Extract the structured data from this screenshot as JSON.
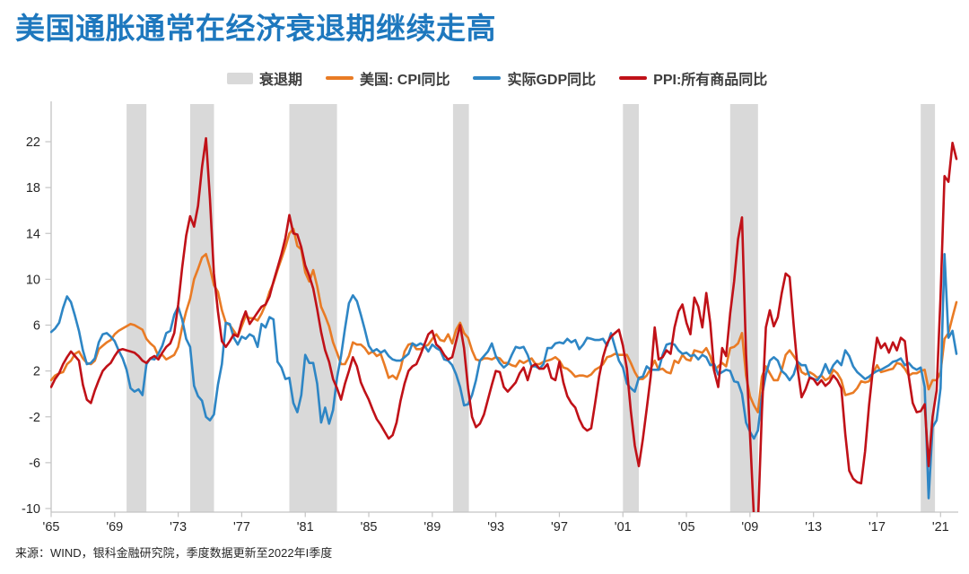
{
  "title": {
    "text": "美国通胀通常在经济衰退期继续走高",
    "color": "#1E78BE"
  },
  "source": {
    "text": "来源：WIND，银科金融研究院，季度数据更新至2022年I季度"
  },
  "colors": {
    "title_blue": "#1E78BE",
    "cpi_orange": "#E97B25",
    "gdp_blue": "#2E86C5",
    "ppi_red": "#C01118",
    "recession_gray": "#D9D9D9",
    "axis_gray": "#C4C4C4",
    "tick_text": "#262626"
  },
  "legend": {
    "items": [
      {
        "label": "衰退期",
        "swatch": "box",
        "color": "#D9D9D9"
      },
      {
        "label": "美国: CPI同比",
        "swatch": "line",
        "color": "#E97B25"
      },
      {
        "label": "实际GDP同比",
        "swatch": "line",
        "color": "#2E86C5"
      },
      {
        "label": "PPI:所有商品同比",
        "swatch": "line",
        "color": "#C01118"
      }
    ]
  },
  "chart_data": {
    "type": "line",
    "title": "美国通胀通常在经济衰退期继续走高",
    "xlabel": "",
    "ylabel": "",
    "unit": "% YoY, quarterly",
    "grid": false,
    "legend_position": "top",
    "xlim": [
      1965.0,
      2022.0
    ],
    "ylim": [
      -10,
      25.6
    ],
    "x_start": 1965.0,
    "x_step": 0.25,
    "x_ticks": [
      {
        "year": 1965,
        "label": "'65"
      },
      {
        "year": 1969,
        "label": "'69"
      },
      {
        "year": 1973,
        "label": "'73"
      },
      {
        "year": 1977,
        "label": "'77"
      },
      {
        "year": 1981,
        "label": "'81"
      },
      {
        "year": 1985,
        "label": "'85"
      },
      {
        "year": 1989,
        "label": "'89"
      },
      {
        "year": 1993,
        "label": "'93"
      },
      {
        "year": 1997,
        "label": "'97"
      },
      {
        "year": 2001,
        "label": "'01"
      },
      {
        "year": 2005,
        "label": "'05"
      },
      {
        "year": 2009,
        "label": "'09"
      },
      {
        "year": 2013,
        "label": "'13"
      },
      {
        "year": 2017,
        "label": "'17"
      },
      {
        "year": 2021,
        "label": "'21"
      }
    ],
    "y_ticks": [
      {
        "value": -10,
        "label": "-10"
      },
      {
        "value": -6,
        "label": "-6"
      },
      {
        "value": -2,
        "label": "-2"
      },
      {
        "value": 2,
        "label": "2"
      },
      {
        "value": 6,
        "label": "6"
      },
      {
        "value": 10,
        "label": "10"
      },
      {
        "value": 14,
        "label": "14"
      },
      {
        "value": 18,
        "label": "18"
      },
      {
        "value": 22,
        "label": "22"
      }
    ],
    "recession_bands": [
      [
        1969.75,
        1971.0
      ],
      [
        1973.75,
        1975.25
      ],
      [
        1980.0,
        1983.0
      ],
      [
        1990.3,
        1991.3
      ],
      [
        2001.0,
        2002.0
      ],
      [
        2007.75,
        2009.5
      ],
      [
        2019.75,
        2020.65
      ]
    ],
    "series": [
      {
        "name": "美国: CPI同比",
        "color": "#E97B25",
        "values": [
          1.2,
          1.6,
          1.8,
          1.9,
          2.6,
          2.9,
          3.5,
          3.7,
          3.1,
          2.7,
          2.6,
          2.9,
          3.9,
          4.2,
          4.5,
          4.7,
          5.2,
          5.5,
          5.7,
          5.9,
          6.1,
          6.0,
          5.8,
          5.6,
          4.8,
          4.4,
          4.1,
          3.3,
          3.4,
          3.0,
          3.2,
          3.4,
          4.1,
          5.8,
          7.2,
          8.3,
          10.0,
          10.9,
          11.9,
          12.2,
          11.0,
          9.5,
          8.9,
          7.3,
          6.2,
          6.0,
          5.5,
          5.0,
          5.9,
          6.8,
          6.6,
          6.6,
          6.4,
          7.0,
          7.8,
          8.9,
          9.7,
          10.8,
          11.8,
          12.8,
          14.0,
          14.4,
          12.9,
          12.6,
          10.6,
          9.8,
          10.8,
          9.4,
          7.6,
          6.8,
          5.9,
          4.5,
          3.6,
          2.6,
          2.6,
          3.3,
          4.5,
          4.3,
          4.3,
          4.0,
          3.5,
          3.7,
          3.3,
          3.5,
          2.5,
          1.4,
          1.6,
          1.3,
          2.2,
          3.7,
          4.3,
          4.4,
          3.9,
          3.9,
          4.1,
          4.3,
          4.8,
          5.2,
          4.7,
          4.6,
          5.2,
          4.4,
          5.6,
          6.2,
          5.3,
          4.9,
          3.8,
          3.0,
          2.9,
          3.1,
          3.1,
          3.0,
          3.2,
          3.1,
          2.7,
          2.7,
          2.5,
          2.4,
          2.9,
          2.7,
          2.9,
          3.1,
          2.6,
          2.6,
          2.8,
          2.9,
          3.0,
          3.2,
          2.9,
          2.3,
          2.2,
          1.9,
          1.5,
          1.6,
          1.6,
          1.5,
          1.7,
          2.1,
          2.3,
          2.6,
          3.2,
          3.3,
          3.5,
          3.4,
          3.4,
          3.4,
          2.7,
          1.9,
          1.3,
          1.3,
          1.6,
          2.2,
          2.9,
          2.1,
          2.2,
          1.9,
          1.8,
          2.9,
          2.7,
          3.4,
          3.0,
          2.9,
          3.8,
          3.7,
          3.6,
          4.0,
          3.3,
          2.0,
          2.4,
          2.7,
          2.4,
          4.0,
          4.1,
          4.4,
          5.3,
          1.6,
          -0.2,
          -1.0,
          -1.6,
          1.5,
          2.4,
          1.8,
          1.2,
          1.2,
          2.1,
          3.4,
          3.8,
          3.3,
          2.8,
          1.9,
          1.7,
          1.9,
          1.7,
          1.4,
          1.6,
          1.2,
          1.4,
          2.1,
          1.8,
          1.2,
          -0.1,
          0.0,
          0.1,
          0.5,
          1.1,
          1.0,
          1.1,
          1.8,
          2.5,
          1.9,
          2.0,
          2.1,
          2.2,
          2.7,
          2.6,
          2.2,
          1.6,
          1.8,
          1.8,
          2.0,
          2.1,
          0.4,
          1.2,
          1.2,
          1.9,
          4.8,
          5.3,
          6.7,
          8.0
        ]
      },
      {
        "name": "实际GDP同比",
        "color": "#2E86C5",
        "values": [
          5.4,
          5.7,
          6.2,
          7.5,
          8.5,
          8.0,
          6.8,
          5.5,
          3.8,
          2.6,
          2.7,
          3.1,
          4.5,
          5.2,
          5.3,
          5.0,
          4.6,
          3.8,
          3.1,
          2.1,
          0.5,
          0.2,
          0.4,
          -0.1,
          2.6,
          3.1,
          3.0,
          3.5,
          4.2,
          5.3,
          5.5,
          6.9,
          7.6,
          6.5,
          4.8,
          4.1,
          0.7,
          -0.2,
          -0.6,
          -2.0,
          -2.3,
          -1.8,
          0.8,
          2.6,
          6.2,
          6.1,
          4.9,
          4.3,
          5.0,
          4.8,
          5.2,
          5.0,
          4.1,
          6.1,
          5.8,
          6.7,
          6.5,
          2.8,
          2.3,
          1.3,
          1.4,
          -0.8,
          -1.6,
          -0.1,
          3.4,
          2.7,
          2.7,
          0.9,
          -2.5,
          -1.2,
          -2.6,
          -1.4,
          1.4,
          3.3,
          5.7,
          7.9,
          8.6,
          8.1,
          6.9,
          5.6,
          4.2,
          3.7,
          3.9,
          3.6,
          3.8,
          3.3,
          3.0,
          2.9,
          2.9,
          3.2,
          3.5,
          4.4,
          4.2,
          4.4,
          4.2,
          3.7,
          4.3,
          4.0,
          3.8,
          3.0,
          2.9,
          2.5,
          1.7,
          0.6,
          -1.0,
          -0.9,
          -0.1,
          1.2,
          2.9,
          3.3,
          3.7,
          4.4,
          3.3,
          2.7,
          2.3,
          2.6,
          3.4,
          4.1,
          4.0,
          4.1,
          3.4,
          2.4,
          2.4,
          2.2,
          2.6,
          4.0,
          4.0,
          4.4,
          4.5,
          4.4,
          4.8,
          4.5,
          4.7,
          3.9,
          4.3,
          4.9,
          4.8,
          4.7,
          4.7,
          4.8,
          4.2,
          5.3,
          4.1,
          2.9,
          2.3,
          0.9,
          0.5,
          0.2,
          1.4,
          1.5,
          2.4,
          2.1,
          2.1,
          2.1,
          3.4,
          4.3,
          4.4,
          4.3,
          3.8,
          3.5,
          3.6,
          3.3,
          3.4,
          3.0,
          3.4,
          3.2,
          2.5,
          2.6,
          1.7,
          1.9,
          2.1,
          2.0,
          1.1,
          1.0,
          0.0,
          -2.5,
          -3.3,
          -3.9,
          -3.2,
          -0.2,
          1.7,
          2.9,
          3.2,
          2.9,
          2.0,
          1.7,
          1.2,
          1.7,
          2.8,
          2.5,
          2.5,
          1.5,
          1.3,
          1.2,
          1.7,
          2.6,
          1.8,
          2.5,
          2.9,
          2.5,
          3.8,
          3.3,
          2.4,
          1.9,
          1.6,
          1.3,
          1.5,
          1.8,
          2.0,
          2.1,
          2.3,
          2.5,
          2.8,
          2.9,
          3.1,
          2.5,
          2.7,
          2.3,
          2.1,
          2.3,
          0.6,
          -9.1,
          -2.9,
          -2.3,
          0.5,
          12.2,
          4.9,
          5.5,
          3.5
        ]
      },
      {
        "name": "PPI:所有商品同比",
        "color": "#C01118",
        "values": [
          0.6,
          1.3,
          1.8,
          2.6,
          3.2,
          3.7,
          3.3,
          2.9,
          0.8,
          -0.5,
          -0.8,
          0.3,
          1.2,
          2.0,
          2.4,
          2.7,
          3.3,
          3.8,
          3.9,
          3.8,
          3.7,
          3.6,
          3.3,
          2.9,
          2.7,
          3.1,
          3.3,
          3.0,
          3.6,
          4.1,
          4.4,
          5.3,
          7.8,
          11.0,
          13.8,
          15.5,
          14.6,
          16.4,
          19.8,
          22.3,
          17.0,
          10.5,
          7.2,
          4.6,
          4.1,
          4.6,
          5.2,
          5.0,
          6.3,
          7.2,
          6.1,
          6.6,
          7.1,
          7.6,
          7.8,
          8.5,
          9.8,
          11.0,
          12.2,
          13.6,
          15.6,
          14.0,
          13.9,
          12.8,
          11.2,
          10.3,
          9.2,
          7.4,
          5.4,
          3.8,
          2.8,
          1.3,
          0.5,
          -0.5,
          0.9,
          2.0,
          3.2,
          2.4,
          1.0,
          0.2,
          -0.5,
          -1.4,
          -2.2,
          -2.7,
          -3.3,
          -3.9,
          -3.6,
          -2.5,
          -0.6,
          0.9,
          2.0,
          2.4,
          2.6,
          3.4,
          4.3,
          5.2,
          5.5,
          4.3,
          4.0,
          3.4,
          3.0,
          3.2,
          4.6,
          6.0,
          4.0,
          0.5,
          -2.0,
          -2.9,
          -2.6,
          -1.8,
          -0.5,
          0.8,
          2.0,
          1.9,
          0.6,
          0.2,
          0.6,
          1.0,
          1.8,
          2.3,
          1.2,
          2.4,
          2.6,
          2.2,
          2.2,
          2.6,
          1.4,
          1.2,
          2.8,
          1.0,
          -0.2,
          -0.8,
          -1.2,
          -2.2,
          -2.9,
          -3.2,
          -3.0,
          -0.8,
          1.5,
          3.2,
          4.4,
          5.0,
          5.3,
          5.6,
          4.2,
          2.2,
          -1.5,
          -4.5,
          -6.3,
          -4.0,
          -1.3,
          1.5,
          5.8,
          3.0,
          3.2,
          3.8,
          3.5,
          5.8,
          7.2,
          7.8,
          6.2,
          5.2,
          8.4,
          7.6,
          5.8,
          8.8,
          6.2,
          2.0,
          0.6,
          4.0,
          3.3,
          7.0,
          9.8,
          13.5,
          15.4,
          3.5,
          -3.5,
          -10.8,
          -11.4,
          -1.5,
          5.8,
          7.3,
          5.9,
          6.7,
          8.8,
          10.5,
          10.2,
          6.0,
          2.2,
          -0.3,
          0.4,
          1.4,
          1.3,
          0.8,
          1.2,
          0.7,
          1.0,
          1.6,
          1.2,
          0.5,
          -3.5,
          -6.7,
          -7.4,
          -7.7,
          -7.8,
          -5.0,
          -1.0,
          2.3,
          4.9,
          4.0,
          4.4,
          3.6,
          4.5,
          3.8,
          4.9,
          4.6,
          1.5,
          -0.8,
          -1.6,
          -1.5,
          -0.9,
          -6.3,
          -2.0,
          0.3,
          8.5,
          19.0,
          18.5,
          21.9,
          20.5
        ]
      }
    ]
  }
}
